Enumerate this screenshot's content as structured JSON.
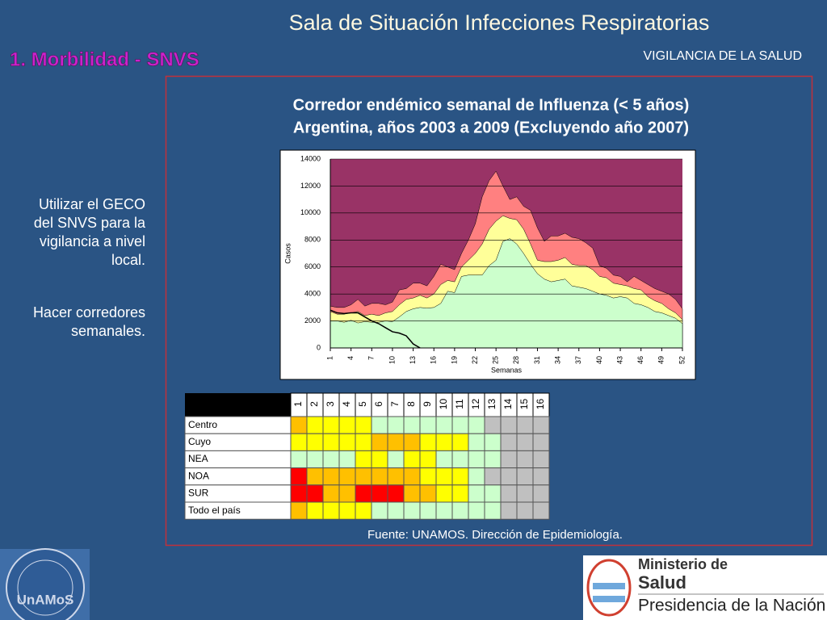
{
  "header": {
    "title": "Sala de Situación Infecciones Respiratorias",
    "subtitle": "VIGILANCIA DE LA SALUD",
    "section": "1.  Morbilidad - SNVS"
  },
  "body": [
    "Utilizar el GECO del SNVS para la vigilancia a nivel local.",
    "Hacer corredores semanales."
  ],
  "chart_data": {
    "type": "area",
    "title": "Corredor endémico semanal de Influenza (< 5 años)",
    "subtitle": "Argentina, años 2003 a 2009 (Excluyendo año 2007)",
    "xlabel": "Semanas",
    "ylabel": "Casos",
    "background": "#993366",
    "x": [
      1,
      2,
      3,
      4,
      5,
      6,
      7,
      8,
      9,
      10,
      11,
      12,
      13,
      14,
      15,
      16,
      17,
      18,
      19,
      20,
      21,
      22,
      23,
      24,
      25,
      26,
      27,
      28,
      29,
      30,
      31,
      32,
      33,
      34,
      35,
      36,
      37,
      38,
      39,
      40,
      41,
      42,
      43,
      44,
      45,
      46,
      47,
      48,
      49,
      50,
      51,
      52
    ],
    "xlim": [
      1,
      52
    ],
    "xticks": [
      1,
      4,
      7,
      10,
      13,
      16,
      19,
      22,
      25,
      28,
      31,
      34,
      37,
      40,
      43,
      46,
      49,
      52
    ],
    "ylim": [
      0,
      14000
    ],
    "yticks": [
      0,
      2000,
      4000,
      6000,
      8000,
      10000,
      12000,
      14000
    ],
    "grid": true,
    "series": [
      {
        "color": "#ff8080",
        "values": [
          3100,
          3000,
          3000,
          3200,
          3600,
          3100,
          3300,
          3300,
          3200,
          3400,
          4300,
          4400,
          4800,
          4800,
          4600,
          5300,
          6200,
          6000,
          5800,
          7000,
          8000,
          9200,
          11200,
          12400,
          13100,
          12000,
          11000,
          11200,
          10500,
          10200,
          8900,
          7900,
          8300,
          8300,
          8500,
          8200,
          8100,
          7800,
          7400,
          6100,
          5900,
          5400,
          5300,
          4900,
          5300,
          5000,
          4700,
          4400,
          4200,
          4000,
          3600,
          2900
        ]
      },
      {
        "color": "#ffff99",
        "values": [
          2700,
          2500,
          2500,
          2600,
          2700,
          2400,
          2500,
          2400,
          2600,
          2700,
          3200,
          3600,
          3700,
          3900,
          3700,
          4000,
          4700,
          5000,
          4900,
          6000,
          6500,
          7000,
          7700,
          8800,
          9400,
          9800,
          9600,
          9500,
          8800,
          7700,
          6500,
          6400,
          6400,
          6500,
          6700,
          6200,
          6100,
          6100,
          5800,
          5300,
          5200,
          4800,
          4700,
          4600,
          4400,
          4300,
          3800,
          3500,
          3300,
          2900,
          2600,
          2100
        ]
      },
      {
        "color": "#ccffcc",
        "values": [
          2000,
          2000,
          1900,
          2050,
          1850,
          1950,
          1900,
          1900,
          2000,
          1950,
          2300,
          2700,
          2900,
          3000,
          2950,
          3000,
          3300,
          4200,
          4100,
          5300,
          5400,
          5400,
          5400,
          6100,
          6500,
          7900,
          8100,
          7700,
          7000,
          6200,
          5500,
          5100,
          4900,
          5000,
          5100,
          4600,
          4500,
          4400,
          4200,
          4000,
          3900,
          3700,
          3800,
          3700,
          3300,
          3200,
          3000,
          2700,
          2600,
          2400,
          2200,
          1800
        ]
      },
      {
        "type": "line",
        "color": "#000000",
        "values": [
          2800,
          2600,
          2550,
          2600,
          2600,
          2300,
          2000,
          1800,
          1500,
          1200,
          1100,
          900,
          300,
          0,
          null,
          null,
          null,
          null,
          null,
          null,
          null,
          null,
          null,
          null,
          null,
          null,
          null,
          null,
          null,
          null,
          null,
          null,
          null,
          null,
          null,
          null,
          null,
          null,
          null,
          null,
          null,
          null,
          null,
          null,
          null,
          null,
          null,
          null,
          null,
          null,
          null,
          null
        ]
      }
    ]
  },
  "table": {
    "columns": [
      1,
      2,
      3,
      4,
      5,
      6,
      7,
      8,
      9,
      10,
      11,
      12,
      13,
      14,
      15,
      16
    ],
    "rows": [
      {
        "label": "Centro",
        "colors": [
          "#ffc000",
          "#ffff00",
          "#ffff00",
          "#ffff00",
          "#ffff00",
          "#ccffcc",
          "#ccffcc",
          "#ccffcc",
          "#ccffcc",
          "#ccffcc",
          "#ccffcc",
          "#ccffcc",
          "#c0c0c0",
          "#c0c0c0",
          "#c0c0c0",
          "#c0c0c0"
        ]
      },
      {
        "label": "Cuyo",
        "colors": [
          "#ffff00",
          "#ffff00",
          "#ffff00",
          "#ffff00",
          "#ffff00",
          "#ffc000",
          "#ffc000",
          "#ffc000",
          "#ffff00",
          "#ffff00",
          "#ffff00",
          "#ccffcc",
          "#ccffcc",
          "#c0c0c0",
          "#c0c0c0",
          "#c0c0c0"
        ]
      },
      {
        "label": "NEA",
        "colors": [
          "#ccffcc",
          "#ccffcc",
          "#ccffcc",
          "#ccffcc",
          "#ffff00",
          "#ffff00",
          "#ccffcc",
          "#ffff00",
          "#ffff00",
          "#ccffcc",
          "#ccffcc",
          "#ccffcc",
          "#ccffcc",
          "#c0c0c0",
          "#c0c0c0",
          "#c0c0c0"
        ]
      },
      {
        "label": "NOA",
        "colors": [
          "#ff0000",
          "#ffc000",
          "#ffc000",
          "#ffc000",
          "#ffc000",
          "#ffc000",
          "#ffc000",
          "#ffc000",
          "#ffff00",
          "#ffff00",
          "#ffff00",
          "#ccffcc",
          "#c0c0c0",
          "#c0c0c0",
          "#c0c0c0",
          "#c0c0c0"
        ]
      },
      {
        "label": "SUR",
        "colors": [
          "#ff0000",
          "#ff0000",
          "#ffc000",
          "#ffc000",
          "#ff0000",
          "#ff0000",
          "#ff0000",
          "#ffc000",
          "#ffc000",
          "#ffff00",
          "#ffff00",
          "#ccffcc",
          "#ccffcc",
          "#c0c0c0",
          "#c0c0c0",
          "#c0c0c0"
        ]
      },
      {
        "label": "Todo el país",
        "colors": [
          "#ffc000",
          "#ffff00",
          "#ffff00",
          "#ffff00",
          "#ffff00",
          "#ccffcc",
          "#ccffcc",
          "#ccffcc",
          "#ccffcc",
          "#ccffcc",
          "#ccffcc",
          "#ccffcc",
          "#ccffcc",
          "#c0c0c0",
          "#c0c0c0",
          "#c0c0c0"
        ]
      }
    ]
  },
  "source": "Fuente: UNAMOS. Dirección de Epidemiología.",
  "logos": {
    "unamos": "UnAMoS",
    "ministry_1": "Ministerio de",
    "ministry_2": "Salud",
    "presidency": "Presidencia de la Nación"
  }
}
